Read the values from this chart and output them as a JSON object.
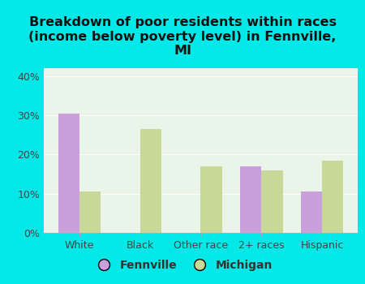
{
  "title": "Breakdown of poor residents within races\n(income below poverty level) in Fennville,\nMI",
  "categories": [
    "White",
    "Black",
    "Other race",
    "2+ races",
    "Hispanic"
  ],
  "fennville_values": [
    30.5,
    0,
    0,
    17.0,
    10.5
  ],
  "michigan_values": [
    10.5,
    26.5,
    17.0,
    16.0,
    18.5
  ],
  "fennville_color": "#c9a0dc",
  "michigan_color": "#c8d898",
  "background_outer": "#00e8e8",
  "background_inner": "#e8f5e8",
  "ylim": [
    0,
    42
  ],
  "yticks": [
    0,
    10,
    20,
    30,
    40
  ],
  "ytick_labels": [
    "0%",
    "10%",
    "20%",
    "30%",
    "40%"
  ],
  "bar_width": 0.35,
  "legend_labels": [
    "Fennville",
    "Michigan"
  ],
  "title_fontsize": 11.5,
  "tick_fontsize": 9,
  "legend_fontsize": 10
}
